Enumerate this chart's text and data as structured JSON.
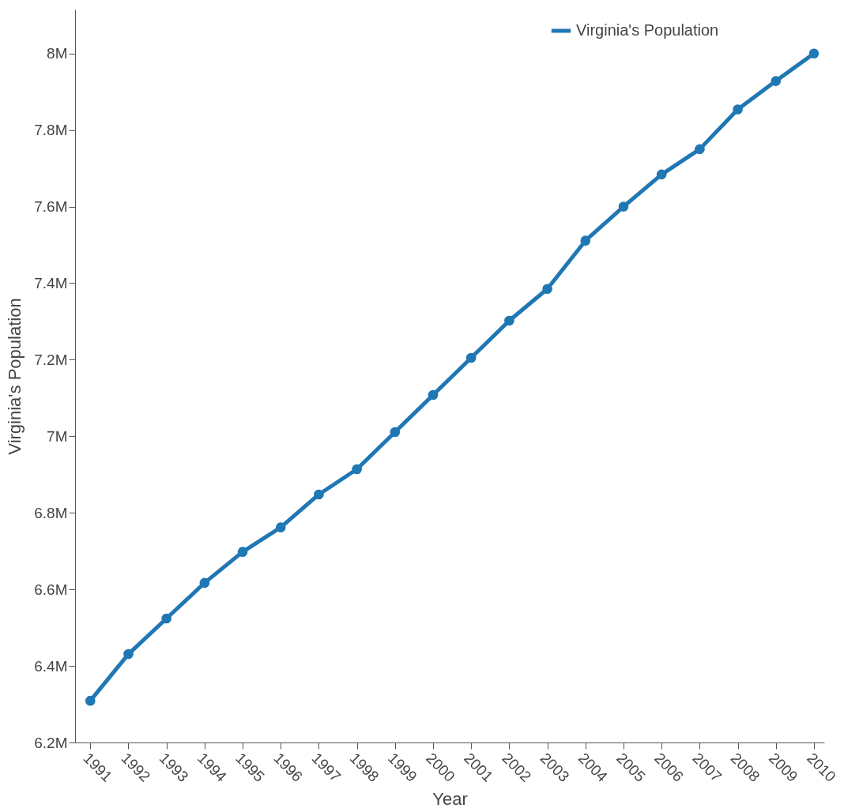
{
  "chart_data": {
    "type": "line",
    "xlabel": "Year",
    "ylabel": "Virginia's Population",
    "x": [
      1991,
      1992,
      1993,
      1994,
      1995,
      1996,
      1997,
      1998,
      1999,
      2000,
      2001,
      2002,
      2003,
      2004,
      2005,
      2006,
      2007,
      2008,
      2009,
      2010
    ],
    "series": [
      {
        "name": "Virginia's Population",
        "color": "#1f77b4",
        "values": [
          6309000,
          6431000,
          6524000,
          6617000,
          6698000,
          6762000,
          6848000,
          6914000,
          7011000,
          7108000,
          7205000,
          7302000,
          7385000,
          7511000,
          7600000,
          7684000,
          7750000,
          7854000,
          7928000,
          8000000
        ]
      }
    ],
    "xlim": [
      1990.6,
      2010.27
    ],
    "xticks": [
      1991,
      1992,
      1993,
      1994,
      1995,
      1996,
      1997,
      1998,
      1999,
      2000,
      2001,
      2002,
      2003,
      2004,
      2005,
      2006,
      2007,
      2008,
      2009,
      2010
    ],
    "ylim": [
      6200000,
      8115000
    ],
    "yticks": [
      {
        "value": 6200000,
        "label": "6.2M"
      },
      {
        "value": 6400000,
        "label": "6.4M"
      },
      {
        "value": 6600000,
        "label": "6.6M"
      },
      {
        "value": 6800000,
        "label": "6.8M"
      },
      {
        "value": 7000000,
        "label": "7M"
      },
      {
        "value": 7200000,
        "label": "7.2M"
      },
      {
        "value": 7400000,
        "label": "7.4M"
      },
      {
        "value": 7600000,
        "label": "7.6M"
      },
      {
        "value": 7800000,
        "label": "7.8M"
      },
      {
        "value": 8000000,
        "label": "8M"
      }
    ],
    "grid": false,
    "legend": "top right",
    "marker": "circle",
    "line_style": "solid"
  }
}
